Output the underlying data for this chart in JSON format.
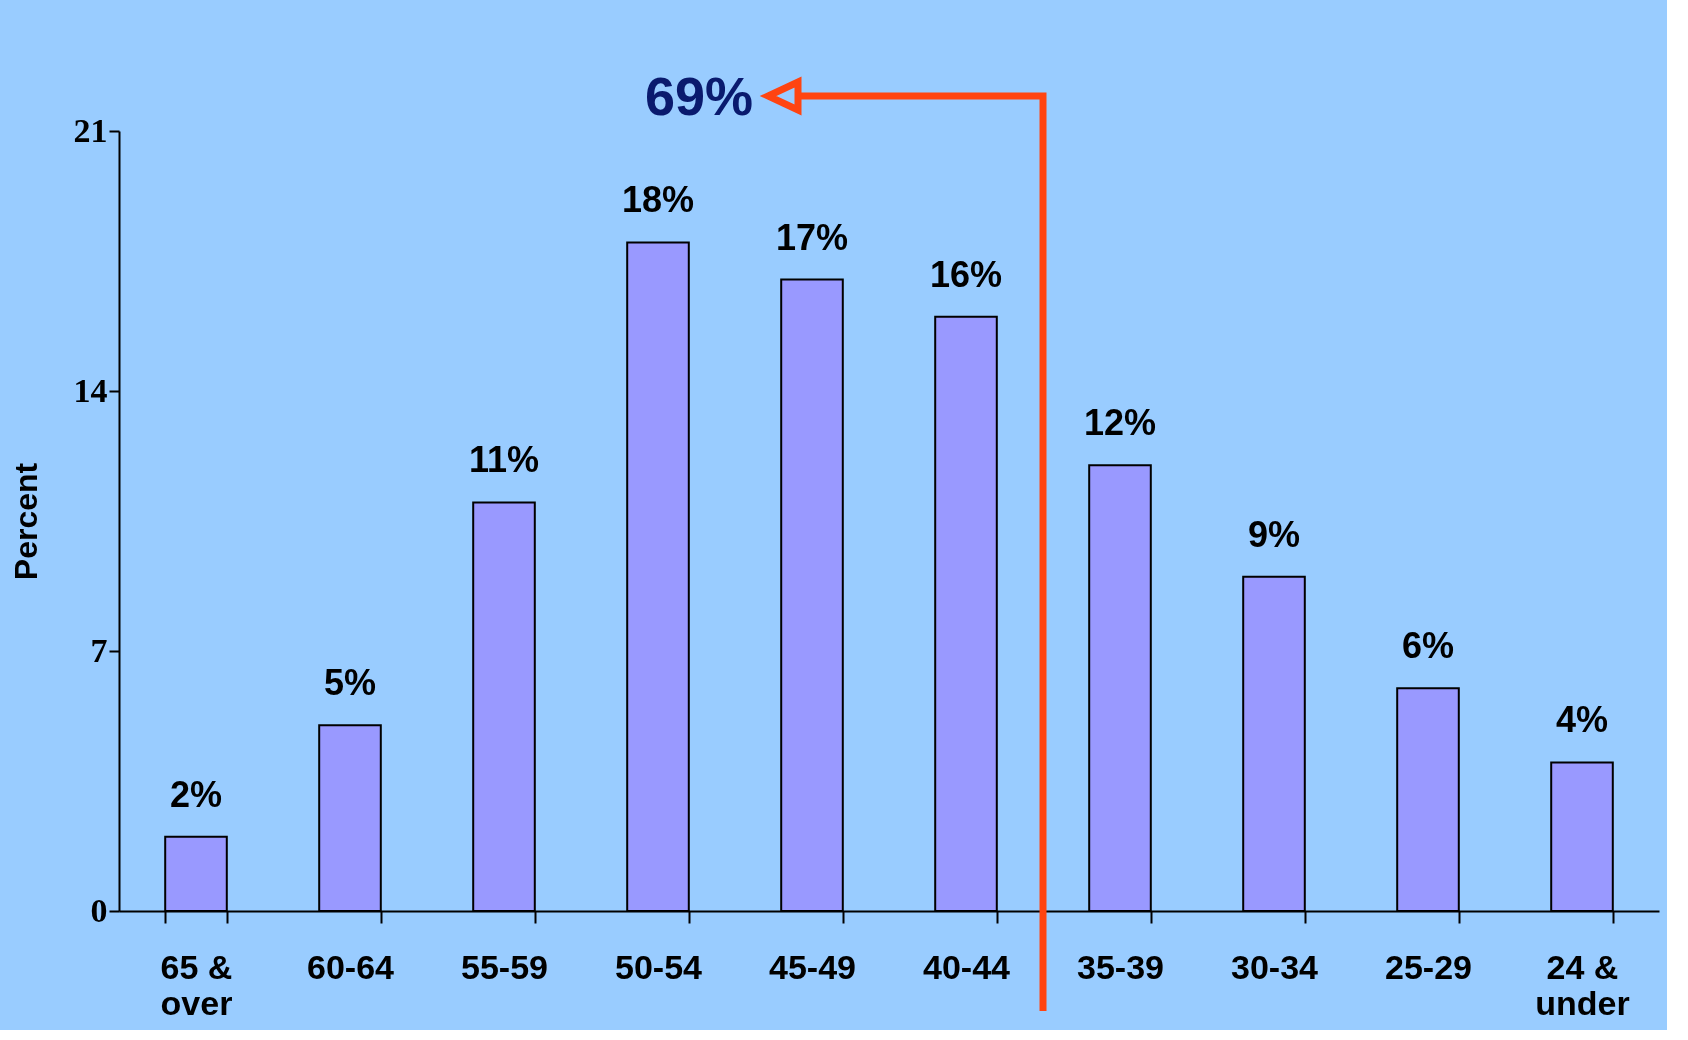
{
  "chart_data": {
    "type": "bar",
    "ylabel": "Percent",
    "categories": [
      "65 & over",
      "60-64",
      "55-59",
      "50-54",
      "45-49",
      "40-44",
      "35-39",
      "30-34",
      "25-29",
      "24 & under"
    ],
    "values": [
      2,
      5,
      11,
      18,
      17,
      16,
      12,
      9,
      6,
      4
    ],
    "value_labels": [
      "2%",
      "5%",
      "11%",
      "18%",
      "17%",
      "16%",
      "12%",
      "9%",
      "6%",
      "4%"
    ],
    "color": "#9999ff",
    "ylim": [
      0,
      21
    ],
    "yticks": [
      0,
      7,
      14,
      21
    ],
    "grid": false,
    "annotations": [
      "69%"
    ]
  }
}
